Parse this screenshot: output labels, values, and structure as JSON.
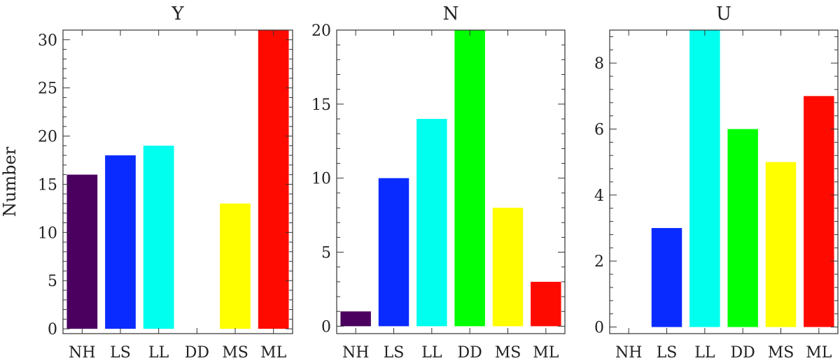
{
  "figure": {
    "ylabel": "Number"
  },
  "chart_data": [
    {
      "type": "bar",
      "title": "Y",
      "categories": [
        "NH",
        "LS",
        "LL",
        "DD",
        "MS",
        "ML"
      ],
      "values": [
        16,
        18,
        19,
        0,
        13,
        31
      ],
      "colors": [
        "#4b0060",
        "#0a2bff",
        "#00ffee",
        "#00ff00",
        "#ffff00",
        "#ff0a00"
      ],
      "ylim": [
        -0.5,
        31
      ],
      "yticks": [
        0,
        5,
        10,
        15,
        20,
        25,
        30
      ],
      "ylabel": "Number",
      "xlabel": ""
    },
    {
      "type": "bar",
      "title": "N",
      "categories": [
        "NH",
        "LS",
        "LL",
        "DD",
        "MS",
        "ML"
      ],
      "values": [
        1,
        10,
        14,
        20,
        8,
        3
      ],
      "colors": [
        "#4b0060",
        "#0a2bff",
        "#00ffee",
        "#00ff00",
        "#ffff00",
        "#ff0a00"
      ],
      "ylim": [
        -0.5,
        20
      ],
      "yticks": [
        0,
        5,
        10,
        15,
        20
      ],
      "ylabel": "",
      "xlabel": ""
    },
    {
      "type": "bar",
      "title": "U",
      "categories": [
        "NH",
        "LS",
        "LL",
        "DD",
        "MS",
        "ML"
      ],
      "values": [
        0,
        3,
        9,
        6,
        5,
        7
      ],
      "colors": [
        "#4b0060",
        "#0a2bff",
        "#00ffee",
        "#00ff00",
        "#ffff00",
        "#ff0a00"
      ],
      "ylim": [
        -0.2,
        9
      ],
      "yticks": [
        0,
        2,
        4,
        6,
        8
      ],
      "ylabel": "",
      "xlabel": ""
    }
  ]
}
